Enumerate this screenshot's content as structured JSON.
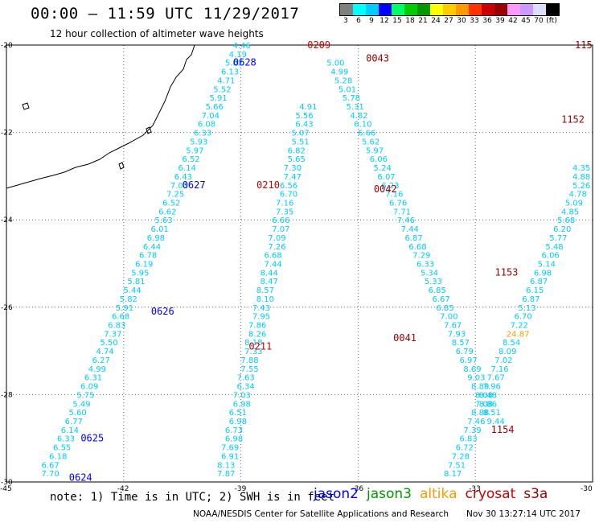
{
  "title": "00:00 – 11:59 UTC 11/29/2017",
  "subtitle": "12 hour collection of altimeter wave heights",
  "colorbar": {
    "colors": [
      "#808080",
      "#00ffff",
      "#00ccff",
      "#0000ff",
      "#00ff66",
      "#00cc00",
      "#009900",
      "#ffff00",
      "#ffcc00",
      "#ff9900",
      "#ff3300",
      "#cc0000",
      "#990000",
      "#ff99ff",
      "#cc99ff",
      "#ddddff",
      "#000000"
    ],
    "labels": [
      "3",
      "6",
      "9",
      "12",
      "15",
      "18",
      "21",
      "24",
      "27",
      "30",
      "33",
      "36",
      "39",
      "42",
      "45",
      "70",
      "(ft)"
    ]
  },
  "axis": {
    "y_ticks": [
      "-20",
      "-22",
      "-24",
      "-26",
      "-28",
      "-30"
    ],
    "x_ticks": [
      "-45",
      "-42",
      "-39",
      "-36",
      "-33",
      "-30"
    ]
  },
  "notes": "note: 1) Time is in UTC; 2) SWH is in feet",
  "satellites": [
    {
      "name": "jason2",
      "color": "#0000ff"
    },
    {
      "name": "jason3",
      "color": "#009900"
    },
    {
      "name": "altika",
      "color": "#ff9900"
    },
    {
      "name": "cryosat",
      "color": "#cc0000"
    },
    {
      "name": "s3a",
      "color": "#990000"
    }
  ],
  "credit": "NOAA/NESDIS Center for Satellite Applications and Research",
  "stamp": "Nov 30 13:27:14 UTC 2017",
  "chart_data": {
    "type": "scatter",
    "xlim": [
      -45,
      -30
    ],
    "ylim": [
      -30,
      -20
    ],
    "grid": true,
    "title": "00:00 – 11:59 UTC 11/29/2017",
    "subtitle": "12 hour collection of altimeter wave heights",
    "labels": [
      {
        "lon": -39.2,
        "lat": -20.4,
        "text": "0628",
        "color": "#0000ff"
      },
      {
        "lon": -37.3,
        "lat": -20.0,
        "text": "0209",
        "color": "#cc0000"
      },
      {
        "lon": -35.8,
        "lat": -20.3,
        "text": "0043",
        "color": "#990000"
      },
      {
        "lon": -38.6,
        "lat": -23.2,
        "text": "0210",
        "color": "#cc0000"
      },
      {
        "lon": -35.6,
        "lat": -23.3,
        "text": "0042",
        "color": "#990000"
      },
      {
        "lon": -40.5,
        "lat": -23.2,
        "text": "0627",
        "color": "#0000ff"
      },
      {
        "lon": -41.3,
        "lat": -26.1,
        "text": "0626",
        "color": "#0000ff"
      },
      {
        "lon": -38.8,
        "lat": -26.9,
        "text": "0211",
        "color": "#cc0000"
      },
      {
        "lon": -35.1,
        "lat": -26.7,
        "text": "0041",
        "color": "#990000"
      },
      {
        "lon": -43.1,
        "lat": -29.0,
        "text": "0625",
        "color": "#0000ff"
      },
      {
        "lon": -43.4,
        "lat": -29.9,
        "text": "0624",
        "color": "#0000ff"
      },
      {
        "lon": -32.5,
        "lat": -25.2,
        "text": "1153",
        "color": "#990000"
      },
      {
        "lon": -32.6,
        "lat": -28.8,
        "text": "1154",
        "color": "#990000"
      },
      {
        "lon": -30.8,
        "lat": -21.7,
        "text": "1152",
        "color": "#990000"
      },
      {
        "lon": -30.2,
        "lat": -20.0,
        "text": "115",
        "color": "#990000"
      }
    ],
    "series": [
      {
        "name": "",
        "color": "#00ccff",
        "points": [
          [
            -43.9,
            -29.8,
            "7.70"
          ],
          [
            -43.9,
            -29.6,
            "6.67"
          ],
          [
            -43.7,
            -29.4,
            "6.18"
          ],
          [
            -43.6,
            -29.2,
            "6.55"
          ],
          [
            -43.5,
            -29.0,
            "6.33"
          ],
          [
            -43.4,
            -28.8,
            "6.14"
          ],
          [
            -43.3,
            -28.6,
            "6.77"
          ],
          [
            -43.2,
            -28.4,
            "5.60"
          ],
          [
            -43.1,
            -28.2,
            "5.49"
          ],
          [
            -43.0,
            -28.0,
            "5.75"
          ],
          [
            -42.9,
            -27.8,
            "6.09"
          ],
          [
            -42.8,
            -27.6,
            "6.31"
          ],
          [
            -42.7,
            -27.4,
            "4.99"
          ],
          [
            -42.6,
            -27.2,
            "6.27"
          ],
          [
            -42.5,
            -27.0,
            "4.74"
          ],
          [
            -42.4,
            -26.8,
            "5.50"
          ],
          [
            -42.3,
            -26.6,
            "7.37"
          ],
          [
            -42.2,
            -26.4,
            "6.83"
          ],
          [
            -42.1,
            -26.2,
            "6.68"
          ],
          [
            -42.0,
            -26.0,
            "5.91"
          ],
          [
            -41.9,
            -25.8,
            "5.82"
          ],
          [
            -41.8,
            -25.6,
            "5.44"
          ],
          [
            -41.7,
            -25.4,
            "5.81"
          ],
          [
            -41.6,
            -25.2,
            "5.95"
          ],
          [
            -41.5,
            -25.0,
            "6.19"
          ],
          [
            -41.4,
            -24.8,
            "6.78"
          ],
          [
            -41.3,
            -24.6,
            "6.44"
          ],
          [
            -41.2,
            -24.4,
            "6.98"
          ],
          [
            -41.1,
            -24.2,
            "6.01"
          ],
          [
            -41.0,
            -24.0,
            "5.63"
          ],
          [
            -40.9,
            -23.8,
            "6.62"
          ],
          [
            -40.8,
            -23.6,
            "6.52"
          ],
          [
            -40.7,
            -23.4,
            "7.25"
          ],
          [
            -40.6,
            -23.2,
            "7.03"
          ],
          [
            -40.5,
            -23.0,
            "6.43"
          ],
          [
            -40.4,
            -22.8,
            "6.14"
          ],
          [
            -40.3,
            -22.6,
            "6.52"
          ],
          [
            -40.2,
            -22.4,
            "5.97"
          ],
          [
            -40.1,
            -22.2,
            "5.93"
          ],
          [
            -40.0,
            -22.0,
            "6.33"
          ],
          [
            -39.9,
            -21.8,
            "6.08"
          ],
          [
            -39.8,
            -21.6,
            "7.04"
          ],
          [
            -39.7,
            -21.4,
            "5.66"
          ],
          [
            -39.6,
            -21.2,
            "5.91"
          ],
          [
            -39.5,
            -21.0,
            "5.52"
          ],
          [
            -39.4,
            -20.8,
            "4.71"
          ],
          [
            -39.3,
            -20.6,
            "6.13"
          ],
          [
            -39.2,
            -20.4,
            "5.02"
          ],
          [
            -39.1,
            -20.2,
            "4.19"
          ],
          [
            -39.0,
            -20.0,
            "4.46"
          ]
        ]
      },
      {
        "name": "",
        "color": "#00ccff",
        "points": [
          [
            -39.4,
            -29.8,
            "7.87"
          ],
          [
            -39.4,
            -29.6,
            "8.13"
          ],
          [
            -39.3,
            -29.4,
            "6.91"
          ],
          [
            -39.3,
            -29.2,
            "7.69"
          ],
          [
            -39.2,
            -29.0,
            "6.98"
          ],
          [
            -39.2,
            -28.8,
            "6.73"
          ],
          [
            -39.1,
            -28.6,
            "6.98"
          ],
          [
            -39.1,
            -28.4,
            "6.51"
          ],
          [
            -39.0,
            -28.2,
            "6.98"
          ],
          [
            -39.0,
            -28.0,
            "7.03"
          ],
          [
            -38.9,
            -27.8,
            "6.34"
          ],
          [
            -38.9,
            -27.6,
            "7.63"
          ],
          [
            -38.8,
            -27.4,
            "7.55"
          ],
          [
            -38.8,
            -27.2,
            "7.88"
          ],
          [
            -38.7,
            -27.0,
            "7.33"
          ],
          [
            -38.7,
            -26.8,
            "8.18"
          ],
          [
            -38.6,
            -26.6,
            "8.26"
          ],
          [
            -38.6,
            -26.4,
            "7.86"
          ],
          [
            -38.5,
            -26.2,
            "7.95"
          ],
          [
            -38.5,
            -26.0,
            "7.43"
          ],
          [
            -38.4,
            -25.8,
            "8.10"
          ],
          [
            -38.4,
            -25.6,
            "8.57"
          ],
          [
            -38.3,
            -25.4,
            "8.47"
          ],
          [
            -38.3,
            -25.2,
            "8.44"
          ],
          [
            -38.2,
            -25.0,
            "7.44"
          ],
          [
            -38.2,
            -24.8,
            "6.68"
          ],
          [
            -38.1,
            -24.6,
            "7.26"
          ],
          [
            -38.1,
            -24.4,
            "7.09"
          ],
          [
            -38.0,
            -24.2,
            "7.07"
          ],
          [
            -38.0,
            -24.0,
            "6.66"
          ],
          [
            -37.9,
            -23.8,
            "7.35"
          ],
          [
            -37.9,
            -23.6,
            "7.16"
          ],
          [
            -37.8,
            -23.4,
            "6.70"
          ],
          [
            -37.8,
            -23.2,
            "6.56"
          ],
          [
            -37.7,
            -23.0,
            "7.47"
          ],
          [
            -37.7,
            -22.8,
            "7.30"
          ],
          [
            -37.6,
            -22.6,
            "5.65"
          ],
          [
            -37.6,
            -22.4,
            "6.82"
          ],
          [
            -37.5,
            -22.2,
            "5.51"
          ],
          [
            -37.5,
            -22.0,
            "5.07"
          ],
          [
            -37.4,
            -21.8,
            "6.43"
          ],
          [
            -37.4,
            -21.6,
            "5.56"
          ],
          [
            -37.3,
            -21.4,
            "4.91"
          ]
        ]
      },
      {
        "name": "",
        "color": "#00ccff",
        "points": [
          [
            -36.6,
            -20.4,
            "5.00"
          ],
          [
            -36.5,
            -20.6,
            "4.99"
          ],
          [
            -36.4,
            -20.8,
            "5.28"
          ],
          [
            -36.3,
            -21.0,
            "5.01"
          ],
          [
            -36.2,
            -21.2,
            "5.78"
          ],
          [
            -36.1,
            -21.4,
            "5.31"
          ],
          [
            -36.0,
            -21.6,
            "4.82"
          ],
          [
            -35.9,
            -21.8,
            "6.10"
          ],
          [
            -35.8,
            -22.0,
            "6.66"
          ],
          [
            -35.7,
            -22.2,
            "5.62"
          ],
          [
            -35.6,
            -22.4,
            "5.97"
          ],
          [
            -35.5,
            -22.6,
            "6.06"
          ],
          [
            -35.4,
            -22.8,
            "5.24"
          ],
          [
            -35.3,
            -23.0,
            "6.07"
          ],
          [
            -35.2,
            -23.2,
            "6.23"
          ],
          [
            -35.1,
            -23.4,
            "7.16"
          ],
          [
            -35.0,
            -23.6,
            "6.76"
          ],
          [
            -34.9,
            -23.8,
            "7.71"
          ],
          [
            -34.8,
            -24.0,
            "7.46"
          ],
          [
            -34.7,
            -24.2,
            "7.44"
          ],
          [
            -34.6,
            -24.4,
            "6.87"
          ],
          [
            -34.5,
            -24.6,
            "6.68"
          ],
          [
            -34.4,
            -24.8,
            "7.29"
          ],
          [
            -34.3,
            -25.0,
            "6.33"
          ],
          [
            -34.2,
            -25.2,
            "5.34"
          ],
          [
            -34.1,
            -25.4,
            "5.33"
          ],
          [
            -34.0,
            -25.6,
            "6.85"
          ],
          [
            -33.9,
            -25.8,
            "6.67"
          ],
          [
            -33.8,
            -26.0,
            "6.85"
          ],
          [
            -33.7,
            -26.2,
            "7.00"
          ],
          [
            -33.6,
            -26.4,
            "7.67"
          ],
          [
            -33.5,
            -26.6,
            "7.93"
          ],
          [
            -33.4,
            -26.8,
            "8.57"
          ],
          [
            -33.3,
            -27.0,
            "6.79"
          ],
          [
            -33.2,
            -27.2,
            "6.97"
          ],
          [
            -33.1,
            -27.4,
            "8.69"
          ],
          [
            -33.0,
            -27.6,
            "9.03"
          ],
          [
            -32.9,
            -27.8,
            "8.89"
          ],
          [
            -32.8,
            -28.0,
            "8.08"
          ],
          [
            -32.7,
            -28.2,
            "8.86"
          ],
          [
            -32.6,
            -28.4,
            "8.51"
          ],
          [
            -32.5,
            -28.6,
            "9.44"
          ]
        ]
      },
      {
        "name": "",
        "color": "#00ccff",
        "points": [
          [
            -33.6,
            -29.8,
            "8.17"
          ],
          [
            -33.5,
            -29.6,
            "7.51"
          ],
          [
            -33.4,
            -29.4,
            "7.28"
          ],
          [
            -33.3,
            -29.2,
            "6.72"
          ],
          [
            -33.2,
            -29.0,
            "6.83"
          ],
          [
            -33.1,
            -28.8,
            "7.39"
          ],
          [
            -33.0,
            -28.6,
            "7.46"
          ],
          [
            -32.9,
            -28.4,
            "8.88"
          ],
          [
            -32.8,
            -28.2,
            "7.08"
          ],
          [
            -32.7,
            -28.0,
            "8.48"
          ],
          [
            -32.6,
            -27.8,
            "7.96"
          ],
          [
            -32.5,
            -27.6,
            "7.67"
          ],
          [
            -32.4,
            -27.4,
            "7.16"
          ],
          [
            -32.3,
            -27.2,
            "7.02"
          ],
          [
            -32.2,
            -27.0,
            "8.09"
          ],
          [
            -32.1,
            -26.8,
            "8.54"
          ],
          [
            -32.0,
            -26.6,
            "24.87"
          ],
          [
            -31.9,
            -26.4,
            "7.22"
          ],
          [
            -31.8,
            -26.2,
            "6.70"
          ],
          [
            -31.7,
            -26.0,
            "5.13"
          ],
          [
            -31.6,
            -25.8,
            "6.87"
          ],
          [
            -31.5,
            -25.6,
            "6.15"
          ],
          [
            -31.4,
            -25.4,
            "6.87"
          ],
          [
            -31.3,
            -25.2,
            "6.98"
          ],
          [
            -31.2,
            -25.0,
            "5.14"
          ],
          [
            -31.1,
            -24.8,
            "6.06"
          ],
          [
            -31.0,
            -24.6,
            "5.48"
          ],
          [
            -30.9,
            -24.4,
            "5.77"
          ],
          [
            -30.8,
            -24.2,
            "6.20"
          ],
          [
            -30.7,
            -24.0,
            "5.68"
          ],
          [
            -30.6,
            -23.8,
            "4.85"
          ],
          [
            -30.5,
            -23.6,
            "5.09"
          ],
          [
            -30.4,
            -23.4,
            "4.78"
          ],
          [
            -30.3,
            -23.2,
            "5.26"
          ],
          [
            -30.2,
            -23.0,
            "4.88"
          ],
          [
            -30.1,
            -22.8,
            "4.35"
          ]
        ]
      }
    ]
  }
}
